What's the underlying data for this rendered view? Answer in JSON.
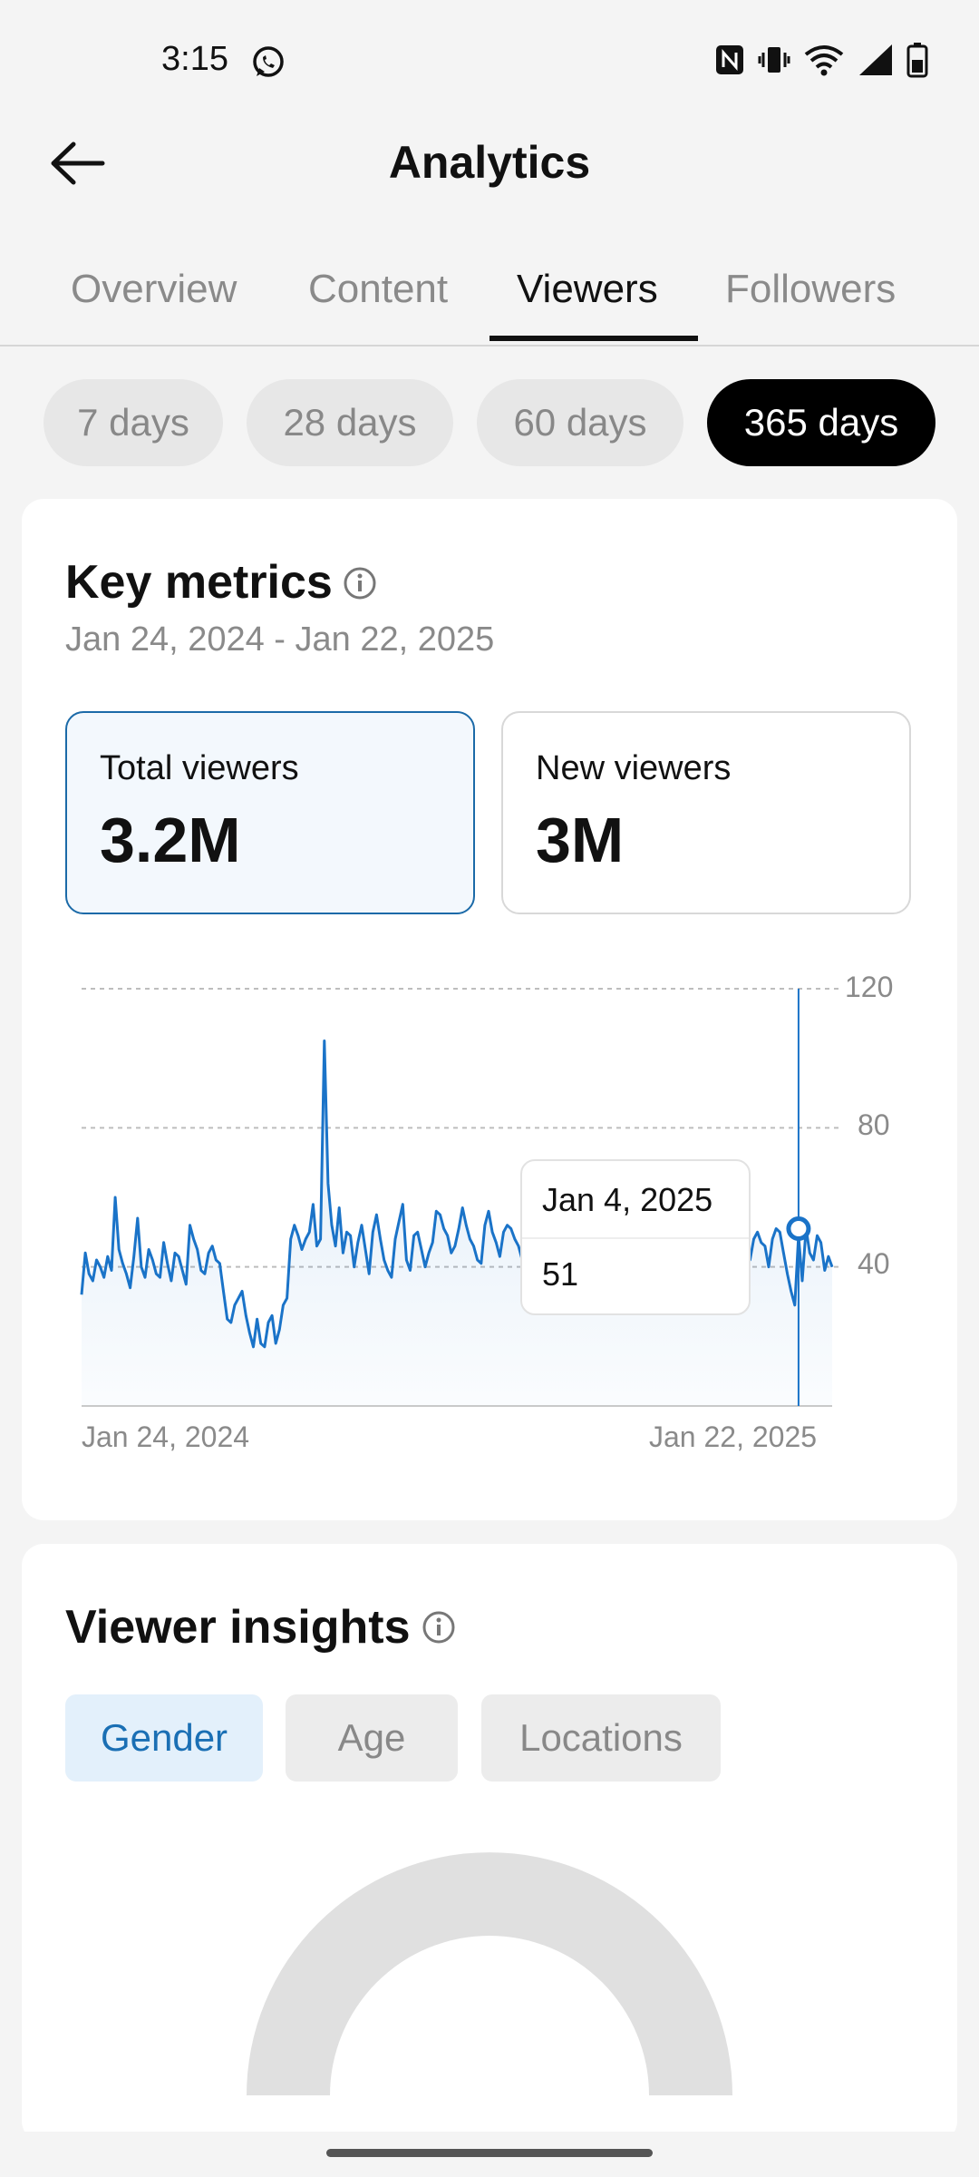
{
  "status_bar": {
    "time": "3:15"
  },
  "app_bar": {
    "title": "Analytics"
  },
  "tabs": [
    {
      "label": "Overview"
    },
    {
      "label": "Content"
    },
    {
      "label": "Viewers"
    },
    {
      "label": "Followers"
    }
  ],
  "active_tab": "Viewers",
  "ranges": [
    {
      "label": "7 days"
    },
    {
      "label": "28 days"
    },
    {
      "label": "60 days"
    },
    {
      "label": "365 days"
    }
  ],
  "active_range": "365 days",
  "key_metrics": {
    "title": "Key metrics",
    "date_range": "Jan 24, 2024 - Jan 22, 2025",
    "total_viewers": {
      "label": "Total viewers",
      "value": "3.2M"
    },
    "new_viewers": {
      "label": "New viewers",
      "value": "3M"
    }
  },
  "chart_data": {
    "type": "area",
    "x_start_label": "Jan 24, 2024",
    "x_end_label": "Jan 22, 2025",
    "y_ticks": [
      "120",
      "80",
      "40"
    ],
    "ylim": [
      0,
      120
    ],
    "grid": true,
    "color": "#1a73c8",
    "tooltip": {
      "date": "Jan 4, 2025",
      "value": "51"
    },
    "series": [
      {
        "values": [
          32,
          44,
          38,
          36,
          42,
          40,
          37,
          43,
          39,
          60,
          45,
          41,
          38,
          34,
          43,
          54,
          40,
          37,
          45,
          42,
          38,
          37,
          47,
          41,
          36,
          44,
          43,
          39,
          35,
          52,
          48,
          45,
          39,
          38,
          44,
          46,
          42,
          41,
          33,
          25,
          24,
          29,
          31,
          33,
          26,
          21,
          17,
          25,
          18,
          17,
          24,
          26,
          18,
          22,
          29,
          31,
          48,
          52,
          49,
          45,
          48,
          50,
          58,
          46,
          48,
          105,
          64,
          52,
          46,
          57,
          44,
          50,
          49,
          40,
          47,
          52,
          45,
          38,
          50,
          55,
          48,
          42,
          39,
          37,
          48,
          53,
          58,
          42,
          39,
          49,
          50,
          45,
          40,
          44,
          47,
          56,
          55,
          51,
          49,
          44,
          46,
          51,
          57,
          52,
          48,
          46,
          42,
          41,
          52,
          56,
          50,
          47,
          43,
          50,
          52,
          51,
          48,
          46,
          42,
          46,
          47,
          52,
          50,
          48,
          45,
          47,
          52,
          50,
          48,
          46,
          47,
          42,
          43,
          51,
          53,
          45,
          48,
          47,
          44,
          40,
          46,
          52,
          48,
          47,
          43,
          49,
          51,
          47,
          42,
          44,
          49,
          54,
          43,
          48,
          50,
          51,
          47,
          45,
          43,
          51,
          53,
          48,
          46,
          49,
          52,
          45,
          47,
          50,
          51,
          47,
          44,
          43,
          50,
          51,
          48,
          44,
          40,
          48,
          51,
          42,
          48,
          50,
          47,
          46,
          40,
          48,
          51,
          50,
          44,
          38,
          33,
          29,
          49,
          36,
          51,
          44,
          42,
          49,
          47,
          39,
          43,
          40
        ]
      }
    ]
  },
  "viewer_insights": {
    "title": "Viewer insights",
    "segments": [
      {
        "label": "Gender"
      },
      {
        "label": "Age"
      },
      {
        "label": "Locations"
      }
    ],
    "active_segment": "Gender"
  }
}
